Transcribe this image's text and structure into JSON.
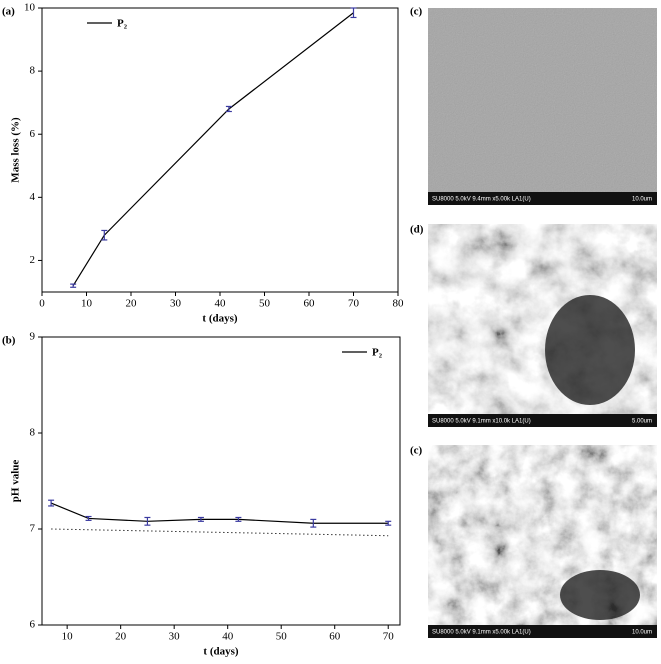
{
  "chart_data": [
    {
      "type": "line",
      "panel_label": "(a)",
      "x_label": "t (days)",
      "y_label": "Mass loss (%)",
      "x": [
        7,
        14,
        42,
        70
      ],
      "series": [
        {
          "name": "P₂",
          "color": "#000000",
          "values": [
            1.2,
            2.8,
            6.8,
            9.85
          ],
          "errors": [
            0.05,
            0.15,
            0.08,
            0.15
          ],
          "error_color": "#3a3aa0"
        }
      ],
      "xlim": [
        0,
        80
      ],
      "xticks": [
        0,
        10,
        20,
        30,
        40,
        50,
        60,
        70,
        80
      ],
      "ylim": [
        1,
        10
      ],
      "yticks": [
        2,
        4,
        6,
        8,
        10
      ],
      "legend": "upper left"
    },
    {
      "type": "line",
      "panel_label": "(b)",
      "x_label": "t (days)",
      "y_label": "pH value",
      "x": [
        7,
        14,
        25,
        35,
        42,
        56,
        70
      ],
      "series": [
        {
          "name": "P₂",
          "color": "#000000",
          "values": [
            7.27,
            7.11,
            7.08,
            7.1,
            7.1,
            7.06,
            7.06
          ],
          "errors": [
            0.03,
            0.02,
            0.04,
            0.02,
            0.02,
            0.04,
            0.02
          ],
          "error_color": "#3a3aa0"
        }
      ],
      "reference_line": {
        "x": [
          7,
          70
        ],
        "values": [
          7.0,
          6.93
        ],
        "color": "#333333",
        "style": "dotted"
      },
      "xlim": [
        5.3,
        72.2
      ],
      "xticks": [
        10,
        20,
        30,
        40,
        50,
        60,
        70
      ],
      "ylim": [
        6,
        9
      ],
      "yticks": [
        6,
        7,
        8,
        9
      ],
      "legend": "upper right"
    }
  ],
  "images": [
    {
      "panel_label": "(c)",
      "caption": "SU8000 5.0kV 9.4mm x5.00k LA1(U)",
      "scale": "10.0um"
    },
    {
      "panel_label": "(d)",
      "caption": "SU8000 5.0kV 9.1mm x10.0k LA1(U)",
      "scale": "5.00um"
    },
    {
      "panel_label": "(c)",
      "caption": "SU8000 5.0kV 9.1mm x5.00k LA1(U)",
      "scale": "10.0um"
    }
  ]
}
